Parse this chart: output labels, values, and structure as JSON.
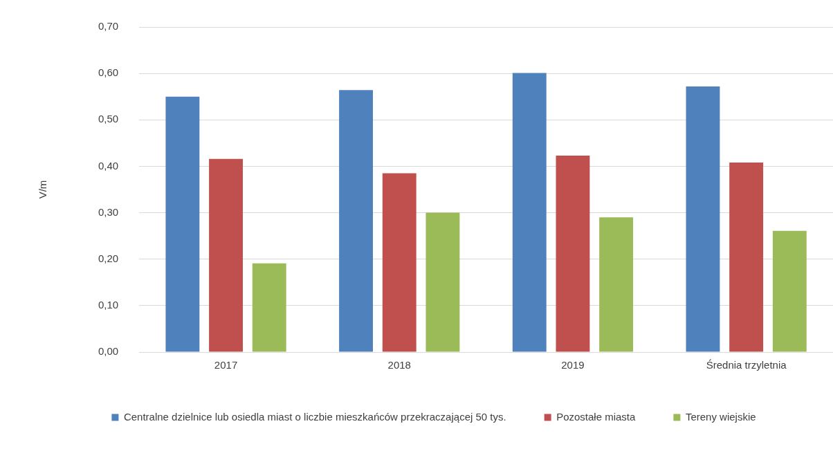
{
  "chart_data": {
    "type": "bar",
    "ylabel": "V/m",
    "categories": [
      "2017",
      "2018",
      "2019",
      "Średnia trzyletnia"
    ],
    "series": [
      {
        "name": "Centralne dzielnice lub osiedla miast o liczbie mieszkańców przekraczającej 50 tys.",
        "color": "#4f81bd",
        "values": [
          0.55,
          0.564,
          0.601,
          0.572
        ]
      },
      {
        "name": "Pozostałe miasta",
        "color": "#c0504d",
        "values": [
          0.416,
          0.385,
          0.423,
          0.408
        ]
      },
      {
        "name": "Tereny wiejskie",
        "color": "#9bbb59",
        "values": [
          0.191,
          0.3,
          0.29,
          0.261
        ]
      }
    ],
    "ylim": [
      0,
      0.7
    ],
    "yticks": [
      {
        "value": 0,
        "label": "0,00"
      },
      {
        "value": 0.1,
        "label": "0,10"
      },
      {
        "value": 0.2,
        "label": "0,20"
      },
      {
        "value": 0.3,
        "label": "0,30"
      },
      {
        "value": 0.4,
        "label": "0,40"
      },
      {
        "value": 0.5,
        "label": "0,50"
      },
      {
        "value": 0.6,
        "label": "0,60"
      },
      {
        "value": 0.7,
        "label": "0,70"
      }
    ],
    "grid": "y",
    "legend": "bottom"
  }
}
